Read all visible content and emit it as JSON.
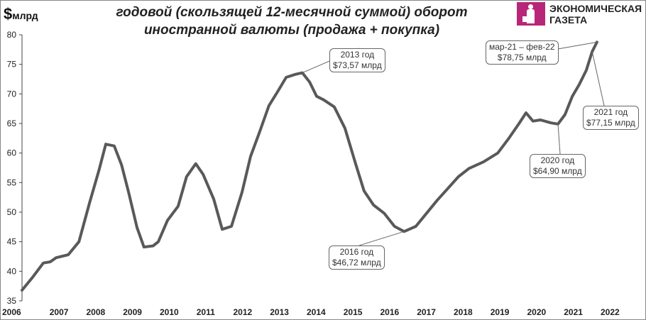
{
  "title_line1": "годовой  (скользящей 12-месячной суммой) оборот",
  "title_line2": "иностранной валюты (продажа + покупка)",
  "unit_symbol": "$",
  "unit_text": "млрд",
  "logo": {
    "line1": "ЭКОНОМИЧЕСКАЯ",
    "line2": "ГАЗЕТА",
    "color": "#b8267a"
  },
  "annotations": [
    {
      "line1": "2013 год",
      "line2": "$73,57 млрд"
    },
    {
      "line1": "2016 год",
      "line2": "$46,72 млрд"
    },
    {
      "line1": "2020 год",
      "line2": "$64,90 млрд"
    },
    {
      "line1": "2021 год",
      "line2": "$77,15 млрд"
    },
    {
      "line1": "мар-21 – фев-22",
      "line2": "$78,75 млрд"
    }
  ],
  "chart_data": {
    "type": "line",
    "ylim": [
      35,
      80
    ],
    "xlim": [
      2006,
      2022
    ],
    "yticks": [
      35,
      40,
      45,
      50,
      55,
      60,
      65,
      70,
      75,
      80
    ],
    "xticks": [
      "2006",
      "2007",
      "2008",
      "2009",
      "2010",
      "2011",
      "2012",
      "2013",
      "2014",
      "2015",
      "2016",
      "2017",
      "2018",
      "2019",
      "2020",
      "2021",
      "2022"
    ],
    "line_color": "#595959",
    "grid": false,
    "x": [
      2006.0,
      2006.29,
      2006.58,
      2006.77,
      2006.93,
      2007.26,
      2007.55,
      2007.84,
      2008.09,
      2008.28,
      2008.51,
      2008.71,
      2008.9,
      2009.13,
      2009.32,
      2009.57,
      2009.71,
      2009.96,
      2010.25,
      2010.48,
      2010.73,
      2010.93,
      2011.22,
      2011.45,
      2011.7,
      2011.99,
      2012.22,
      2012.47,
      2012.72,
      2012.96,
      2013.19,
      2013.44,
      2013.63,
      2013.83,
      2014.02,
      2014.21,
      2014.5,
      2014.79,
      2015.08,
      2015.31,
      2015.57,
      2015.86,
      2016.14,
      2016.4,
      2016.72,
      2017.01,
      2017.3,
      2017.59,
      2017.88,
      2018.17,
      2018.56,
      2018.95,
      2019.24,
      2019.53,
      2019.72,
      2019.91,
      2020.11,
      2020.4,
      2020.59,
      2020.78,
      2020.98,
      2021.17,
      2021.36,
      2021.52,
      2021.65
    ],
    "y": [
      36.8,
      39,
      41.4,
      41.6,
      42.3,
      42.8,
      45,
      51.6,
      57,
      61.5,
      61.2,
      58,
      53.4,
      47.4,
      44.1,
      44.3,
      45,
      48.6,
      51,
      56,
      58.2,
      56.4,
      52.2,
      47.1,
      47.6,
      53.4,
      59.4,
      63.6,
      68,
      70.4,
      72.8,
      73.3,
      73.57,
      72,
      69.6,
      69,
      67.8,
      64.2,
      58.2,
      53.6,
      51.2,
      49.8,
      47.6,
      46.72,
      47.6,
      49.8,
      52,
      54,
      56,
      57.4,
      58.5,
      60,
      62.4,
      65,
      66.8,
      65.4,
      65.6,
      65.1,
      64.9,
      66.5,
      69.6,
      71.6,
      74,
      77.15,
      78.75
    ]
  }
}
